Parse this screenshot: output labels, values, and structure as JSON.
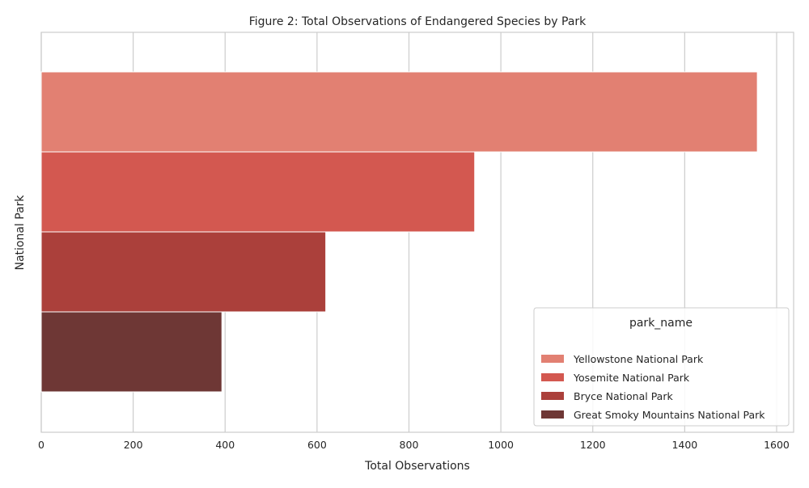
{
  "chart_data": {
    "type": "bar",
    "orientation": "horizontal",
    "title": "Figure 2: Total Observations of Endangered Species by Park",
    "xlabel": "Total Observations",
    "ylabel": "National Park",
    "xlim": [
      0,
      1637
    ],
    "x_ticks": [
      0,
      200,
      400,
      600,
      800,
      1000,
      1200,
      1400,
      1600
    ],
    "grid": true,
    "legend_title": "park_name",
    "legend_position": "bottom-right",
    "series": [
      {
        "name": "Yellowstone National Park",
        "value": 1558,
        "color": "#e28072"
      },
      {
        "name": "Yosemite National Park",
        "value": 943,
        "color": "#d35850"
      },
      {
        "name": "Bryce National Park",
        "value": 619,
        "color": "#ab403b"
      },
      {
        "name": "Great Smoky Mountains National Park",
        "value": 393,
        "color": "#6e3735"
      }
    ]
  }
}
